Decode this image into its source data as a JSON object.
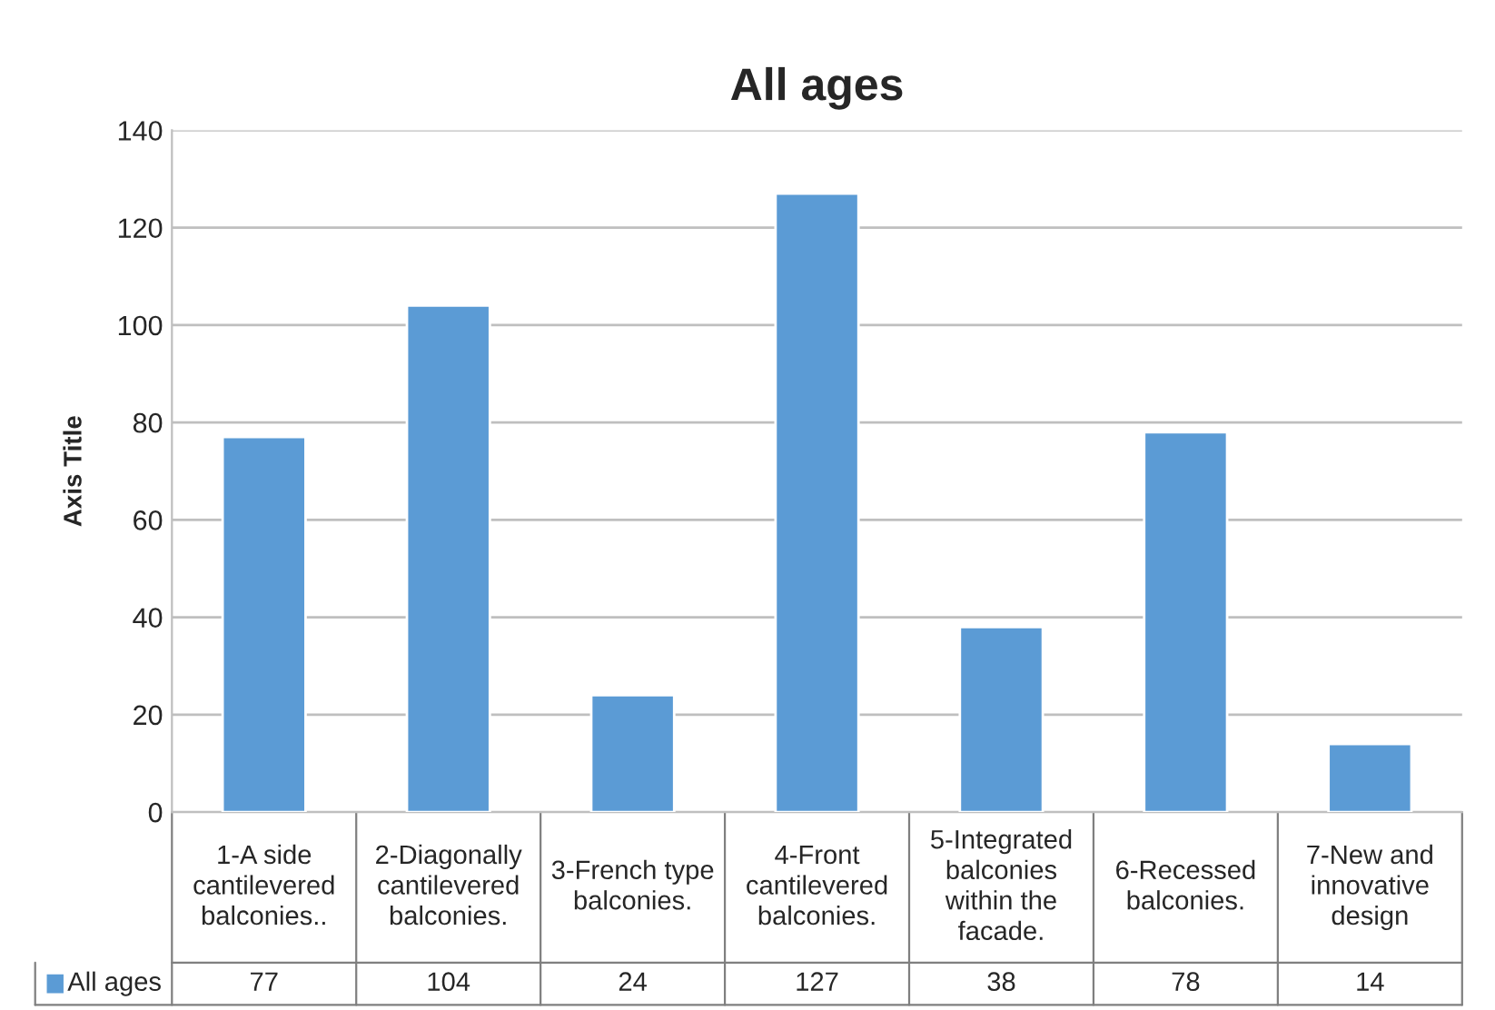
{
  "chart_data": {
    "type": "bar",
    "title": "All ages",
    "ylabel": "Axis Title",
    "categories": [
      "1-A side cantilevered balconies..",
      "2-Diagonally cantilevered balconies.",
      "3-French type balconies.",
      "4-Front cantilevered balconies.",
      "5-Integrated balconies within the facade.",
      "6-Recessed balconies.",
      "7-New and innovative design"
    ],
    "series": [
      {
        "name": "All ages",
        "color": "#5b9bd5",
        "values": [
          77,
          104,
          24,
          127,
          38,
          78,
          14
        ]
      }
    ],
    "ylim": [
      0,
      140
    ],
    "yticks": [
      0,
      20,
      40,
      60,
      80,
      100,
      120,
      140
    ],
    "grid": "y",
    "legend": "bottom",
    "data_labels": true
  }
}
